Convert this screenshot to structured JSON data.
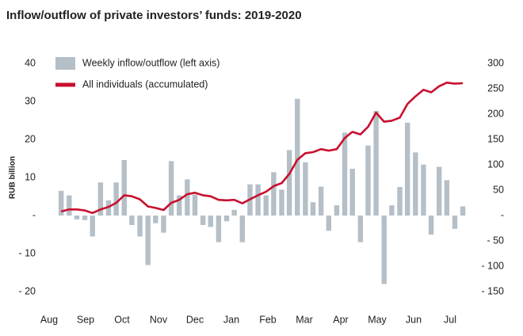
{
  "chart_data": {
    "type": "bar",
    "title": "Inflow/outflow of private investors’ funds: 2019-2020",
    "y_label": "RUB billion",
    "xlim": [
      -0.2,
      11.6
    ],
    "xticks": [
      {
        "value": 0,
        "label": "Aug"
      },
      {
        "value": 1,
        "label": "Sep"
      },
      {
        "value": 2,
        "label": "Oct"
      },
      {
        "value": 3,
        "label": "Nov"
      },
      {
        "value": 4,
        "label": "Dec"
      },
      {
        "value": 5,
        "label": "Jan"
      },
      {
        "value": 6,
        "label": "Feb"
      },
      {
        "value": 7,
        "label": "Mar"
      },
      {
        "value": 8,
        "label": "Apr"
      },
      {
        "value": 9,
        "label": "May"
      },
      {
        "value": 10,
        "label": "Jun"
      },
      {
        "value": 11,
        "label": "Jul"
      }
    ],
    "ylim": [
      -20,
      40
    ],
    "yticks": [
      40,
      30,
      20,
      10,
      {
        "value": 0,
        "label": "-"
      },
      {
        "value": -10,
        "label": "- 10"
      },
      {
        "value": -20,
        "label": "- 20"
      }
    ],
    "y2lim": [
      -150,
      300
    ],
    "y2ticks": [
      300,
      250,
      200,
      150,
      100,
      50,
      {
        "value": 0,
        "label": "-"
      },
      {
        "value": -50,
        "label": "- 50"
      },
      {
        "value": -100,
        "label": "- 100"
      },
      {
        "value": -150,
        "label": "- 150"
      }
    ],
    "x": [
      0.33,
      0.55,
      0.76,
      0.98,
      1.19,
      1.41,
      1.63,
      1.84,
      2.06,
      2.27,
      2.49,
      2.71,
      2.92,
      3.14,
      3.35,
      3.57,
      3.79,
      4.0,
      4.22,
      4.43,
      4.65,
      4.87,
      5.08,
      5.3,
      5.51,
      5.73,
      5.95,
      6.16,
      6.38,
      6.59,
      6.81,
      7.03,
      7.24,
      7.46,
      7.67,
      7.89,
      8.11,
      8.32,
      8.54,
      8.75,
      8.97,
      9.19,
      9.4,
      9.62,
      9.83,
      10.05,
      10.27,
      10.48,
      10.7,
      10.91,
      11.13,
      11.35
    ],
    "series": [
      {
        "name": "Weekly inflow/outflow (left axis)",
        "type": "bar",
        "color": "#b5bfc7",
        "values": [
          6.5,
          5.3,
          -1,
          -1.2,
          -5.5,
          8.7,
          4,
          8.7,
          14.6,
          -2.5,
          -5.5,
          -13,
          -2,
          -4.5,
          14.3,
          5.3,
          9.5,
          5.5,
          -2.5,
          -3,
          -7,
          -1.5,
          1.5,
          -7,
          8.2,
          8.2,
          5.3,
          11.4,
          6.8,
          17.2,
          30.7,
          14,
          3.5,
          7.6,
          -4,
          2.7,
          21.8,
          12.3,
          -7,
          18.4,
          27.5,
          -18,
          2.7,
          7.5,
          24.4,
          16.6,
          13.4,
          -5,
          12.8,
          9.3,
          -3.5,
          2.4
        ]
      },
      {
        "name": "All individuals (accumulated)",
        "type": "line",
        "color": "#c8102e",
        "axis": "y2",
        "values": [
          8,
          12,
          12,
          10,
          5,
          12,
          17,
          25,
          40,
          38,
          32,
          18,
          15,
          11,
          25,
          31,
          42,
          45,
          40,
          38,
          31,
          30,
          31,
          24,
          32,
          40,
          47,
          58,
          64,
          82,
          110,
          123,
          125,
          131,
          128,
          131,
          153,
          165,
          160,
          175,
          203,
          185,
          187,
          193,
          220,
          235,
          248,
          243,
          255,
          262,
          260,
          261
        ]
      }
    ]
  }
}
